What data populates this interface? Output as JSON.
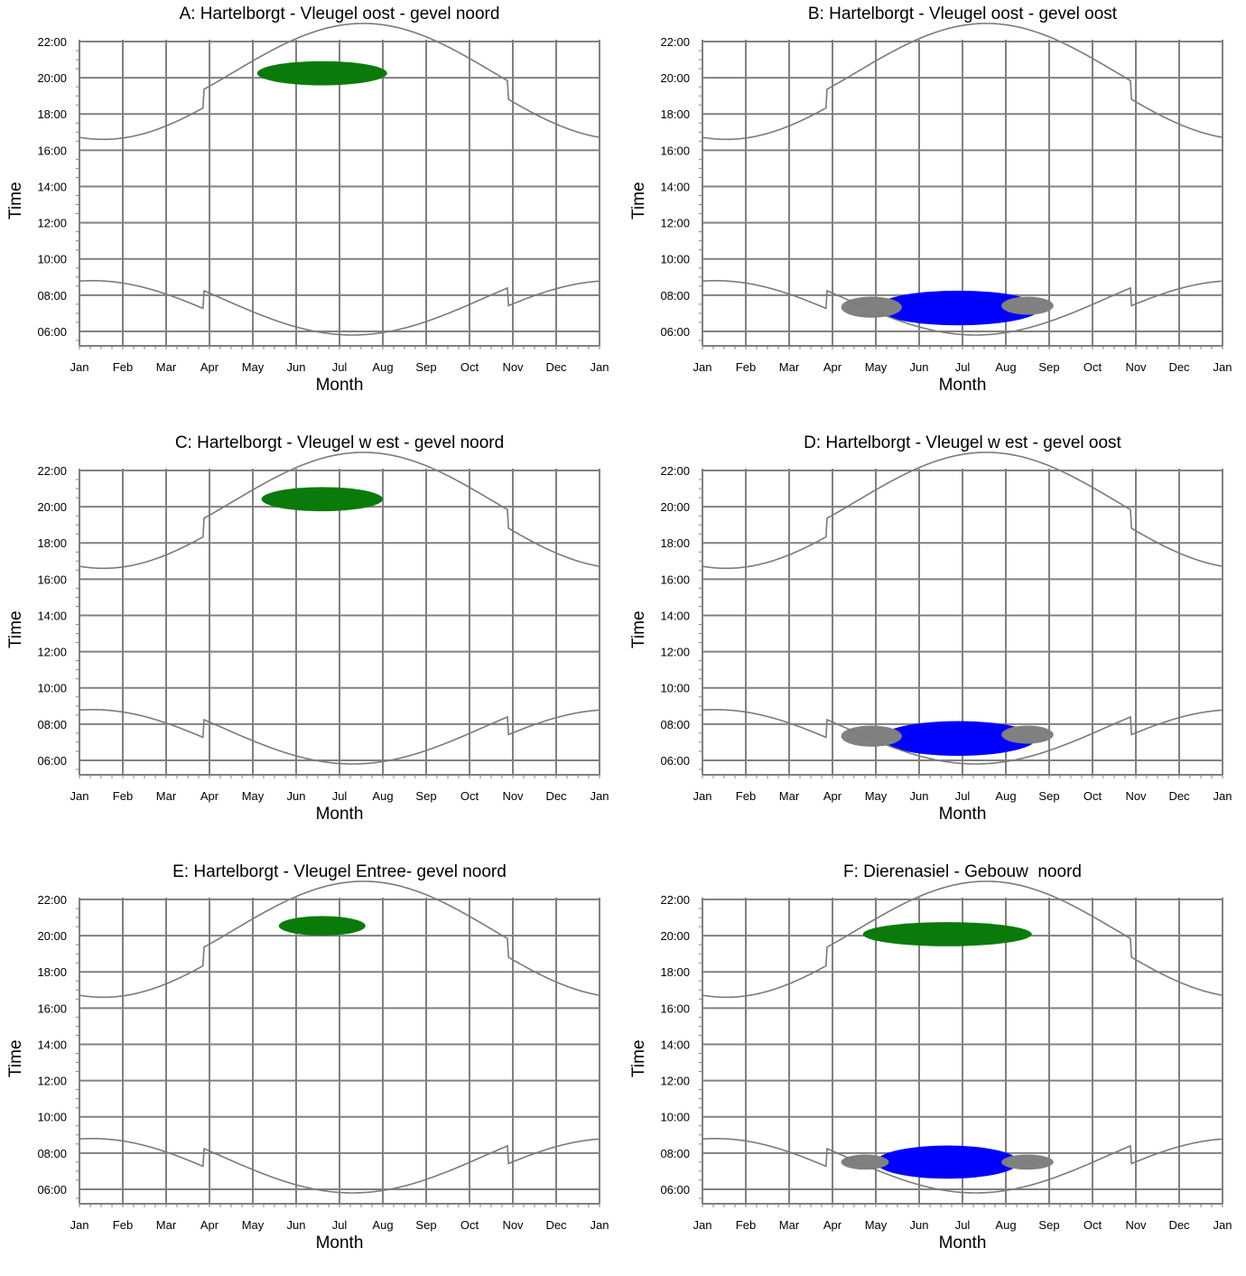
{
  "chart_data": [
    {
      "panel": "A",
      "type": "area",
      "title": "A: Hartelborgt - Vleugel oost - gevel noord",
      "xlabel": "Month",
      "ylabel": "Time",
      "x_ticks": [
        "Jan",
        "Feb",
        "Mar",
        "Apr",
        "May",
        "Jun",
        "Jul",
        "Aug",
        "Sep",
        "Oct",
        "Nov",
        "Dec",
        "Jan"
      ],
      "y_ticks": [
        "06:00",
        "08:00",
        "10:00",
        "12:00",
        "14:00",
        "16:00",
        "18:00",
        "20:00",
        "22:00"
      ],
      "xlim": [
        0,
        12
      ],
      "ylim_hours": [
        5.2,
        22.1
      ],
      "grid": true,
      "boundaries": [
        "sunrise",
        "sunset"
      ],
      "blobs": [
        {
          "color": "#0a7a0a",
          "x_start": 4.1,
          "x_end": 7.1,
          "time_low": "19:35",
          "time_high": "20:55"
        }
      ]
    },
    {
      "panel": "B",
      "type": "area",
      "title": "B: Hartelborgt - Vleugel oost - gevel oost",
      "xlabel": "Month",
      "ylabel": "Time",
      "x_ticks": [
        "Jan",
        "Feb",
        "Mar",
        "Apr",
        "May",
        "Jun",
        "Jul",
        "Aug",
        "Sep",
        "Oct",
        "Nov",
        "Dec",
        "Jan"
      ],
      "y_ticks": [
        "06:00",
        "08:00",
        "10:00",
        "12:00",
        "14:00",
        "16:00",
        "18:00",
        "20:00",
        "22:00"
      ],
      "xlim": [
        0,
        12
      ],
      "ylim_hours": [
        5.2,
        22.1
      ],
      "grid": true,
      "boundaries": [
        "sunrise",
        "sunset"
      ],
      "blobs": [
        {
          "color": "#0000ff",
          "x_start": 4.0,
          "x_end": 7.8,
          "time_low": "06:20",
          "time_high": "08:15"
        },
        {
          "color": "#808080",
          "x_start": 3.2,
          "x_end": 4.6,
          "time_low": "06:45",
          "time_high": "07:55"
        },
        {
          "color": "#808080",
          "x_start": 6.9,
          "x_end": 8.1,
          "time_low": "06:55",
          "time_high": "07:55"
        }
      ]
    },
    {
      "panel": "C",
      "type": "area",
      "title": "C: Hartelborgt - Vleugel w est - gevel noord",
      "xlabel": "Month",
      "ylabel": "Time",
      "x_ticks": [
        "Jan",
        "Feb",
        "Mar",
        "Apr",
        "May",
        "Jun",
        "Jul",
        "Aug",
        "Sep",
        "Oct",
        "Nov",
        "Dec",
        "Jan"
      ],
      "y_ticks": [
        "06:00",
        "08:00",
        "10:00",
        "12:00",
        "14:00",
        "16:00",
        "18:00",
        "20:00",
        "22:00"
      ],
      "xlim": [
        0,
        12
      ],
      "ylim_hours": [
        5.2,
        22.1
      ],
      "grid": true,
      "boundaries": [
        "sunrise",
        "sunset"
      ],
      "blobs": [
        {
          "color": "#0a7a0a",
          "x_start": 4.2,
          "x_end": 7.0,
          "time_low": "19:45",
          "time_high": "21:05"
        }
      ]
    },
    {
      "panel": "D",
      "type": "area",
      "title": "D: Hartelborgt - Vleugel w est - gevel oost",
      "xlabel": "Month",
      "ylabel": "Time",
      "x_ticks": [
        "Jan",
        "Feb",
        "Mar",
        "Apr",
        "May",
        "Jun",
        "Jul",
        "Aug",
        "Sep",
        "Oct",
        "Nov",
        "Dec",
        "Jan"
      ],
      "y_ticks": [
        "06:00",
        "08:00",
        "10:00",
        "12:00",
        "14:00",
        "16:00",
        "18:00",
        "20:00",
        "22:00"
      ],
      "xlim": [
        0,
        12
      ],
      "ylim_hours": [
        5.2,
        22.1
      ],
      "grid": true,
      "boundaries": [
        "sunrise",
        "sunset"
      ],
      "blobs": [
        {
          "color": "#0000ff",
          "x_start": 4.1,
          "x_end": 7.7,
          "time_low": "06:15",
          "time_high": "08:10"
        },
        {
          "color": "#808080",
          "x_start": 3.2,
          "x_end": 4.6,
          "time_low": "06:45",
          "time_high": "07:55"
        },
        {
          "color": "#808080",
          "x_start": 6.9,
          "x_end": 8.1,
          "time_low": "06:55",
          "time_high": "07:55"
        }
      ]
    },
    {
      "panel": "E",
      "type": "area",
      "title": "E: Hartelborgt - Vleugel Entree- gevel noord",
      "xlabel": "Month",
      "ylabel": "Time",
      "x_ticks": [
        "Jan",
        "Feb",
        "Mar",
        "Apr",
        "May",
        "Jun",
        "Jul",
        "Aug",
        "Sep",
        "Oct",
        "Nov",
        "Dec",
        "Jan"
      ],
      "y_ticks": [
        "06:00",
        "08:00",
        "10:00",
        "12:00",
        "14:00",
        "16:00",
        "18:00",
        "20:00",
        "22:00"
      ],
      "xlim": [
        0,
        12
      ],
      "ylim_hours": [
        5.2,
        22.1
      ],
      "grid": true,
      "boundaries": [
        "sunrise",
        "sunset"
      ],
      "blobs": [
        {
          "color": "#0a7a0a",
          "x_start": 4.6,
          "x_end": 6.6,
          "time_low": "20:00",
          "time_high": "21:05"
        }
      ]
    },
    {
      "panel": "F",
      "type": "area",
      "title": "F: Dierenasiel - Gebouw  noord",
      "xlabel": "Month",
      "ylabel": "Time",
      "x_ticks": [
        "Jan",
        "Feb",
        "Mar",
        "Apr",
        "May",
        "Jun",
        "Jul",
        "Aug",
        "Sep",
        "Oct",
        "Nov",
        "Dec",
        "Jan"
      ],
      "y_ticks": [
        "06:00",
        "08:00",
        "10:00",
        "12:00",
        "14:00",
        "16:00",
        "18:00",
        "20:00",
        "22:00"
      ],
      "xlim": [
        0,
        12
      ],
      "ylim_hours": [
        5.2,
        22.1
      ],
      "grid": true,
      "boundaries": [
        "sunrise",
        "sunset"
      ],
      "blobs": [
        {
          "color": "#0a7a0a",
          "x_start": 3.7,
          "x_end": 7.6,
          "time_low": "19:25",
          "time_high": "20:45"
        },
        {
          "color": "#0000ff",
          "x_start": 4.0,
          "x_end": 7.3,
          "time_low": "06:35",
          "time_high": "08:25"
        },
        {
          "color": "#808080",
          "x_start": 3.2,
          "x_end": 4.3,
          "time_low": "07:05",
          "time_high": "07:55"
        },
        {
          "color": "#808080",
          "x_start": 6.9,
          "x_end": 8.1,
          "time_low": "07:05",
          "time_high": "07:55"
        }
      ]
    }
  ]
}
